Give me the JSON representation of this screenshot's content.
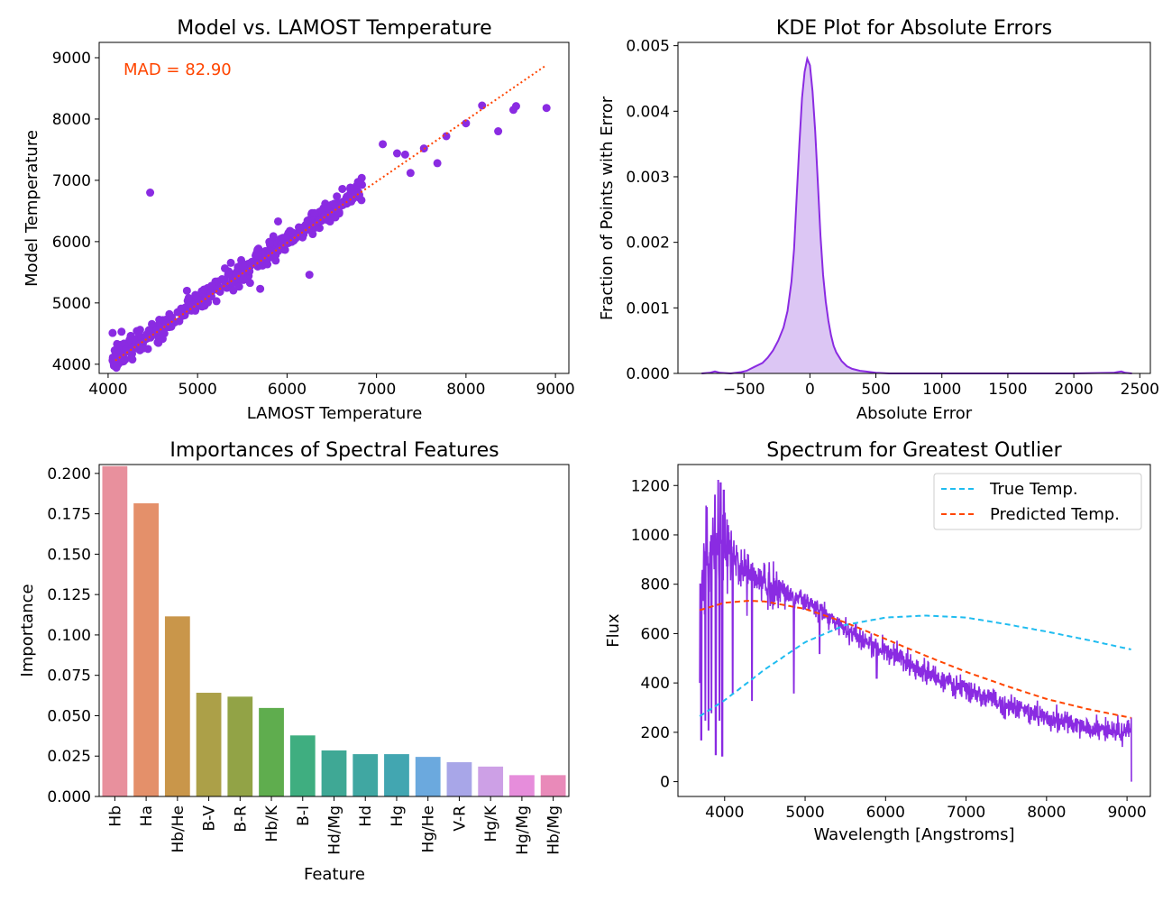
{
  "figure": {
    "background": "#ffffff"
  },
  "chart_data": [
    {
      "type": "scatter",
      "title": "Model vs. LAMOST Temperature",
      "xlabel": "LAMOST Temperature",
      "ylabel": "Model Temperature",
      "xlim": [
        3900,
        9150
      ],
      "ylim": [
        3850,
        9250
      ],
      "xticks": [
        4000,
        5000,
        6000,
        7000,
        8000,
        9000
      ],
      "yticks": [
        4000,
        5000,
        6000,
        7000,
        8000,
        9000
      ],
      "annotation": "MAD = 82.90",
      "annotation_color": "#ff4500",
      "point_color": "#8a2be2",
      "reference_line": {
        "style": "dotted",
        "color": "#ff4500",
        "x": [
          4080,
          8900
        ],
        "y": [
          4060,
          8880
        ]
      },
      "trend": {
        "x_range": [
          4050,
          6850
        ],
        "slope": 1.0,
        "offset": 20,
        "scatter_sd": 90,
        "count": 420
      },
      "outliers": [
        [
          4470,
          6800
        ],
        [
          4100,
          4330
        ],
        [
          4050,
          4510
        ],
        [
          4150,
          4530
        ],
        [
          4350,
          4330
        ],
        [
          4900,
          5080
        ],
        [
          5300,
          5380
        ],
        [
          5900,
          6330
        ],
        [
          5700,
          5230
        ],
        [
          6250,
          5460
        ],
        [
          7070,
          7590
        ],
        [
          7230,
          7440
        ],
        [
          7320,
          7420
        ],
        [
          7380,
          7120
        ],
        [
          7530,
          7520
        ],
        [
          7680,
          7280
        ],
        [
          7780,
          7720
        ],
        [
          8000,
          7930
        ],
        [
          8180,
          8220
        ],
        [
          8360,
          7800
        ],
        [
          8530,
          8150
        ],
        [
          8560,
          8210
        ],
        [
          8900,
          8180
        ]
      ]
    },
    {
      "type": "area",
      "title": "KDE Plot for Absolute Errors",
      "xlabel": "Absolute Error",
      "ylabel": "Fraction of Points with Error",
      "xlim": [
        -1000,
        2580
      ],
      "ylim": [
        0,
        0.00505
      ],
      "xticks": [
        -500,
        0,
        500,
        1000,
        1500,
        2000,
        2500
      ],
      "xtick_labels": [
        "−500",
        "0",
        "500",
        "1000",
        "1500",
        "2000",
        "2500"
      ],
      "yticks": [
        0.0,
        0.001,
        0.002,
        0.003,
        0.004,
        0.005
      ],
      "ytick_labels": [
        "0.000",
        "0.001",
        "0.002",
        "0.003",
        "0.004",
        "0.005"
      ],
      "line_color": "#8a2be2",
      "fill_color": "#dcc6f4",
      "x": [
        -820,
        -760,
        -720,
        -680,
        -600,
        -560,
        -520,
        -480,
        -420,
        -360,
        -320,
        -280,
        -240,
        -200,
        -170,
        -140,
        -120,
        -100,
        -80,
        -60,
        -40,
        -20,
        0,
        20,
        40,
        60,
        80,
        100,
        120,
        140,
        160,
        180,
        200,
        240,
        280,
        320,
        380,
        420,
        500,
        600,
        1000,
        1500,
        2000,
        2300,
        2330,
        2360,
        2390,
        2440
      ],
      "y": [
        0.0,
        1e-05,
        3e-05,
        1e-05,
        0.0,
        1e-05,
        2e-05,
        4e-05,
        0.0001,
        0.00016,
        0.00024,
        0.00035,
        0.0005,
        0.0007,
        0.00095,
        0.0014,
        0.0019,
        0.0027,
        0.0035,
        0.0042,
        0.0046,
        0.0048,
        0.0047,
        0.0043,
        0.0037,
        0.0029,
        0.0021,
        0.0015,
        0.0011,
        0.0008,
        0.00058,
        0.00042,
        0.00032,
        0.00019,
        0.00011,
        7e-05,
        4e-05,
        3e-05,
        1e-05,
        0.0,
        0.0,
        0.0,
        0.0,
        1e-05,
        2e-05,
        3e-05,
        1e-05,
        0.0
      ]
    },
    {
      "type": "bar",
      "title": "Importances of Spectral Features",
      "xlabel": "Feature",
      "ylabel": "Importance",
      "ylim": [
        0,
        0.2055
      ],
      "yticks": [
        0.0,
        0.025,
        0.05,
        0.075,
        0.1,
        0.125,
        0.15,
        0.175,
        0.2
      ],
      "ytick_labels": [
        "0.000",
        "0.025",
        "0.050",
        "0.075",
        "0.100",
        "0.125",
        "0.150",
        "0.175",
        "0.200"
      ],
      "categories": [
        "Hb",
        "Ha",
        "Hb/He",
        "B-V",
        "B-R",
        "Hb/K",
        "B-I",
        "Hd/Mg",
        "Hd",
        "Hg",
        "Hg/He",
        "V-R",
        "Hg/K",
        "Hg/Mg",
        "Hb/Mg"
      ],
      "values": [
        0.2045,
        0.1815,
        0.1115,
        0.0642,
        0.0618,
        0.0548,
        0.0378,
        0.0285,
        0.0262,
        0.0262,
        0.0245,
        0.0212,
        0.0185,
        0.0132,
        0.0132
      ],
      "colors": [
        "#e8909d",
        "#e4906a",
        "#c9964a",
        "#aca048",
        "#92a346",
        "#5fad4e",
        "#3fae80",
        "#3fa895",
        "#40a7a2",
        "#42a6b1",
        "#6ba9de",
        "#a8a6e8",
        "#cda0e6",
        "#e68ddb",
        "#e98ab9"
      ]
    },
    {
      "type": "line",
      "title": "Spectrum for Greatest Outlier",
      "xlabel": "Wavelength [Angstroms]",
      "ylabel": "Flux",
      "xlim": [
        3420,
        9290
      ],
      "ylim": [
        -60,
        1285
      ],
      "xticks": [
        4000,
        5000,
        6000,
        7000,
        8000,
        9000
      ],
      "yticks": [
        0,
        200,
        400,
        600,
        800,
        1000,
        1200
      ],
      "legend_position": "top-right",
      "series": [
        {
          "name": "True Temp.",
          "style": "dashed",
          "color": "#1fbcf0",
          "x": [
            3690,
            4000,
            4500,
            5000,
            5500,
            6000,
            6500,
            7000,
            7500,
            8000,
            8500,
            9060
          ],
          "y": [
            265,
            330,
            455,
            565,
            635,
            665,
            673,
            665,
            638,
            608,
            575,
            535
          ]
        },
        {
          "name": "Predicted Temp.",
          "style": "dashed",
          "color": "#ff4500",
          "x": [
            3690,
            4000,
            4300,
            4500,
            5000,
            5500,
            6000,
            6500,
            7000,
            7500,
            8000,
            8500,
            9060
          ],
          "y": [
            695,
            725,
            733,
            730,
            700,
            645,
            578,
            510,
            445,
            388,
            335,
            295,
            258
          ]
        },
        {
          "name": "",
          "style": "solid",
          "color": "#8a2be2",
          "noisy": true,
          "x": [
            3690,
            3750,
            3800,
            3900,
            4000,
            4100,
            4200,
            4300,
            4400,
            4600,
            4800,
            5000,
            5200,
            5400,
            5600,
            5800,
            6000,
            6200,
            6500,
            7000,
            7500,
            8000,
            8500,
            9000,
            9050
          ],
          "y": [
            740,
            850,
            930,
            960,
            950,
            920,
            870,
            850,
            820,
            790,
            760,
            730,
            690,
            640,
            600,
            560,
            530,
            500,
            440,
            370,
            310,
            260,
            215,
            200,
            210
          ],
          "dips": [
            [
              3710,
              170
            ],
            [
              3760,
              250
            ],
            [
              3800,
              210
            ],
            [
              3835,
              280
            ],
            [
              3890,
              110
            ],
            [
              3935,
              250
            ],
            [
              3970,
              105
            ],
            [
              4100,
              360
            ],
            [
              4340,
              330
            ],
            [
              4860,
              360
            ],
            [
              5180,
              520
            ],
            [
              5890,
              420
            ],
            [
              6560,
              410
            ]
          ],
          "spikes": [
            [
              3880,
              1160
            ],
            [
              3920,
              1220
            ],
            [
              3950,
              1210
            ],
            [
              3990,
              1180
            ],
            [
              3780,
              1110
            ]
          ]
        }
      ]
    }
  ]
}
